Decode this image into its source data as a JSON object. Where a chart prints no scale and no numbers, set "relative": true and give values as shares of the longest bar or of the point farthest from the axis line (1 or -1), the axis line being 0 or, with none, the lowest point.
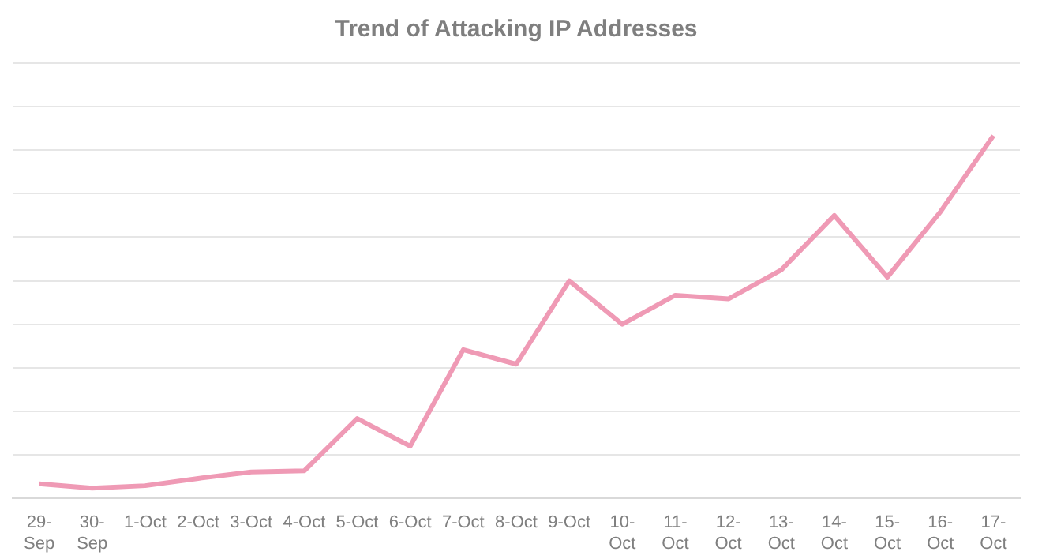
{
  "chart_data": {
    "type": "line",
    "title": "Trend of Attacking IP Addresses",
    "relative": true,
    "grid": "y",
    "marker": "none",
    "line_style": "solid",
    "legend": false,
    "categories": [
      "29-Sep",
      "30-Sep",
      "1-Oct",
      "2-Oct",
      "3-Oct",
      "4-Oct",
      "5-Oct",
      "6-Oct",
      "7-Oct",
      "8-Oct",
      "9-Oct",
      "10-Oct",
      "11-Oct",
      "12-Oct",
      "13-Oct",
      "14-Oct",
      "15-Oct",
      "16-Oct",
      "17-Oct"
    ],
    "series": [
      {
        "color": "#ef9ab5",
        "values": [
          0.04,
          0.028,
          0.035,
          0.055,
          0.073,
          0.076,
          0.22,
          0.144,
          0.41,
          0.37,
          0.6,
          0.48,
          0.56,
          0.55,
          0.63,
          0.78,
          0.61,
          0.79,
          1
        ]
      }
    ]
  }
}
